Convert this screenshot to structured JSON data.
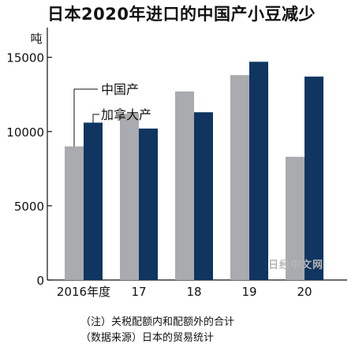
{
  "chart_data": {
    "type": "bar",
    "title": "日本2020年进口的中国产小豆减少",
    "ylabel": "吨",
    "categories": [
      "2016年度",
      "17",
      "18",
      "19",
      "20"
    ],
    "series": [
      {
        "name": "中国产",
        "values": [
          9000,
          11200,
          12700,
          13800,
          8300
        ],
        "color": "#a9abae"
      },
      {
        "name": "加拿大产",
        "values": [
          10600,
          10200,
          11300,
          14700,
          13700
        ],
        "color": "#0f3560"
      }
    ],
    "ylim": [
      0,
      17000
    ],
    "yticks": [
      0,
      5000,
      10000,
      15000
    ],
    "grid": false,
    "legend": "inline-callout"
  },
  "notes": [
    "（注）关税配额内和配额外的合计",
    "（数据来源）日本的贸易统计"
  ],
  "watermark": "日经中文网"
}
